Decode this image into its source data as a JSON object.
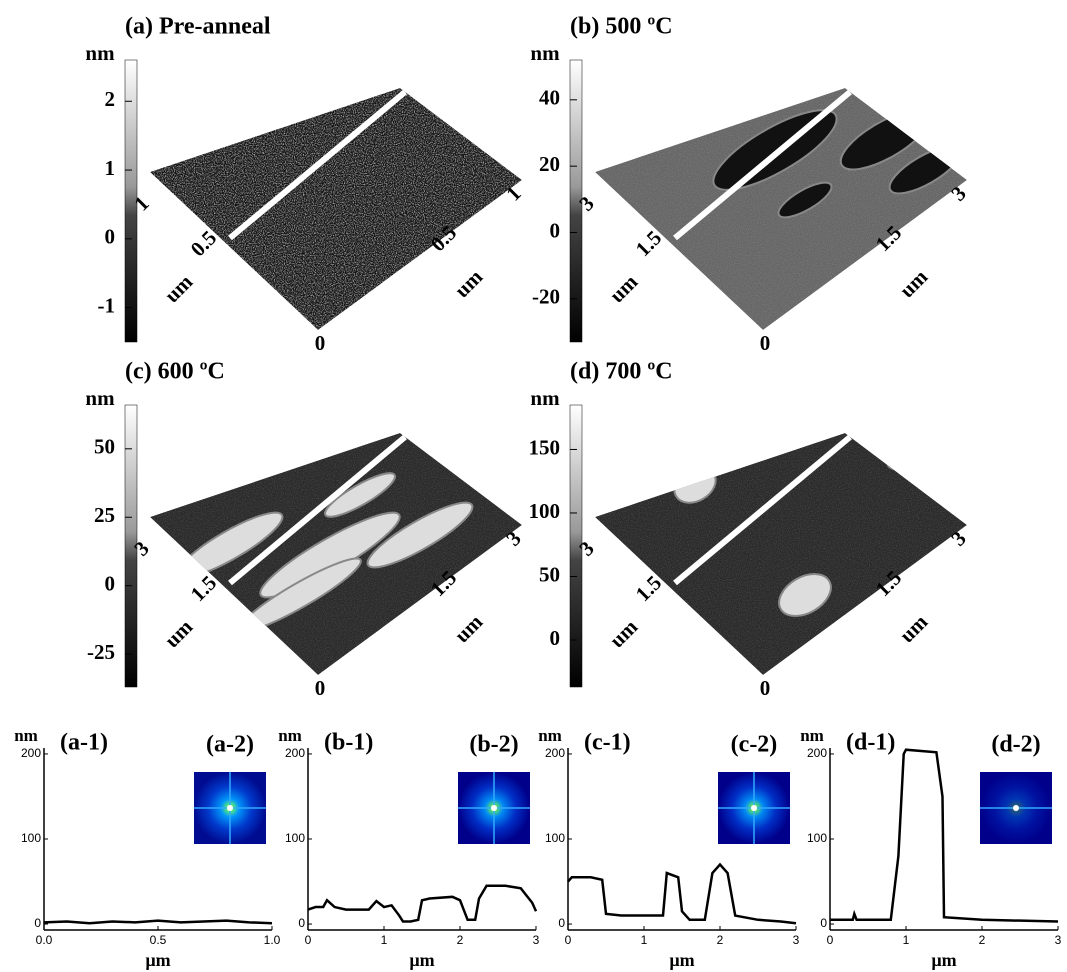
{
  "afm_panels": [
    {
      "title": "(a) Pre-anneal",
      "colorbar_unit": "nm",
      "colorbar_lim": [
        -1.5,
        2.6
      ],
      "colorbar_ticks": [
        2,
        1,
        0,
        -1
      ],
      "axis_labels": [
        "1",
        "0.5",
        "um",
        "0.5",
        "um",
        "1",
        "0"
      ]
    },
    {
      "title": "(b) 500 ºC",
      "colorbar_unit": "nm",
      "colorbar_lim": [
        -33,
        52
      ],
      "colorbar_ticks": [
        40,
        20,
        0,
        -20
      ],
      "axis_labels": [
        "3",
        "1.5",
        "um",
        "1.5",
        "um",
        "3",
        "0"
      ]
    },
    {
      "title": "(c) 600 ºC",
      "colorbar_unit": "nm",
      "colorbar_lim": [
        -37,
        66
      ],
      "colorbar_ticks": [
        50,
        25,
        0,
        -25
      ],
      "axis_labels": [
        "3",
        "1.5",
        "um",
        "1.5",
        "um",
        "3",
        "0"
      ]
    },
    {
      "title": "(d) 700 ºC",
      "colorbar_unit": "nm",
      "colorbar_lim": [
        -37,
        185
      ],
      "colorbar_ticks": [
        150,
        100,
        50,
        0
      ],
      "axis_labels": [
        "3",
        "1.5",
        "um",
        "1.5",
        "um",
        "3",
        "0"
      ]
    }
  ],
  "chart_data": [
    {
      "type": "line",
      "title": "(a-1)",
      "inset_label": "(a-2)",
      "y_label": "nm",
      "x_label": "µm",
      "color": "#000000",
      "x": [
        0,
        0.1,
        0.2,
        0.3,
        0.4,
        0.5,
        0.6,
        0.7,
        0.8,
        0.9,
        1.0
      ],
      "values": [
        2,
        3,
        1,
        3,
        2,
        4,
        2,
        3,
        4,
        2,
        1
      ],
      "xlim": [
        0,
        1
      ],
      "xticks": [
        {
          "value": 0,
          "label": "0.0"
        },
        0.5,
        {
          "value": 1,
          "label": "1.0"
        }
      ],
      "ylim": [
        -7,
        207
      ],
      "yticks": [
        0,
        100,
        200
      ]
    },
    {
      "type": "line",
      "title": "(b-1)",
      "inset_label": "(b-2)",
      "y_label": "nm",
      "x_label": "µm",
      "color": "#000000",
      "x": [
        0,
        0.1,
        0.2,
        0.25,
        0.35,
        0.5,
        0.8,
        0.9,
        1.0,
        1.1,
        1.2,
        1.25,
        1.35,
        1.45,
        1.5,
        1.6,
        1.9,
        2.0,
        2.1,
        2.2,
        2.25,
        2.35,
        2.6,
        2.8,
        2.95,
        3.0
      ],
      "values": [
        17,
        20,
        20,
        28,
        20,
        17,
        17,
        27,
        20,
        22,
        10,
        3,
        3,
        5,
        28,
        30,
        32,
        28,
        5,
        5,
        30,
        45,
        45,
        42,
        25,
        15
      ],
      "xlim": [
        0,
        3
      ],
      "xticks": [
        0,
        1,
        2,
        3
      ],
      "ylim": [
        -7,
        207
      ],
      "yticks": [
        0,
        100,
        200
      ]
    },
    {
      "type": "line",
      "title": "(c-1)",
      "inset_label": "(c-2)",
      "y_label": "nm",
      "x_label": "µm",
      "color": "#000000",
      "x": [
        0,
        0.05,
        0.3,
        0.45,
        0.5,
        0.7,
        1.0,
        1.25,
        1.3,
        1.45,
        1.5,
        1.6,
        1.8,
        1.9,
        2.0,
        2.1,
        2.2,
        2.5,
        2.8,
        3.0
      ],
      "values": [
        50,
        55,
        55,
        52,
        12,
        10,
        10,
        10,
        60,
        55,
        15,
        5,
        5,
        60,
        70,
        60,
        10,
        5,
        3,
        1
      ],
      "xlim": [
        0,
        3
      ],
      "xticks": [
        0,
        1,
        2,
        3
      ],
      "ylim": [
        -7,
        207
      ],
      "yticks": [
        0,
        100,
        200
      ]
    },
    {
      "type": "line",
      "title": "(d-1)",
      "inset_label": "(d-2)",
      "y_label": "nm",
      "x_label": "µm",
      "color": "#000000",
      "x": [
        0,
        0.3,
        0.32,
        0.35,
        0.8,
        0.9,
        0.97,
        1.0,
        1.4,
        1.48,
        1.5,
        2.0,
        3.0
      ],
      "values": [
        5,
        5,
        12,
        5,
        5,
        80,
        200,
        205,
        202,
        150,
        8,
        5,
        3
      ],
      "xlim": [
        0,
        3
      ],
      "xticks": [
        0,
        1,
        2,
        3
      ],
      "ylim": [
        -7,
        207
      ],
      "yticks": [
        0,
        100,
        200
      ]
    }
  ]
}
